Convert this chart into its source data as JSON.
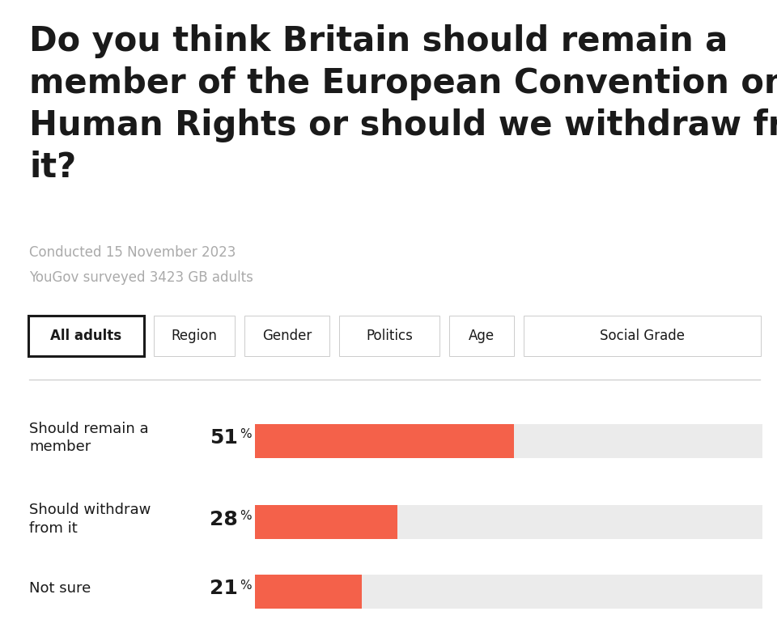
{
  "title_lines": [
    "Do you think Britain should remain a",
    "member of the European Convention on",
    "Human Rights or should we withdraw from",
    "it?"
  ],
  "subtitle_line1": "Conducted 15 November 2023",
  "subtitle_line2": "YouGov surveyed 3423 GB adults",
  "tab_labels": [
    "All adults",
    "Region",
    "Gender",
    "Politics",
    "Age",
    "Social Grade"
  ],
  "active_tab": 0,
  "categories": [
    "Should remain a\nmember",
    "Should withdraw\nfrom it",
    "Not sure"
  ],
  "values": [
    51,
    28,
    21
  ],
  "bar_color": "#f4614a",
  "bg_bar_color": "#ebebeb",
  "max_value": 100,
  "background_color": "#ffffff",
  "text_color": "#1a1a1a",
  "subtitle_color": "#aaaaaa",
  "label_fontsize": 13,
  "value_fontsize": 16,
  "title_fontsize": 30,
  "tab_fontsize": 12
}
